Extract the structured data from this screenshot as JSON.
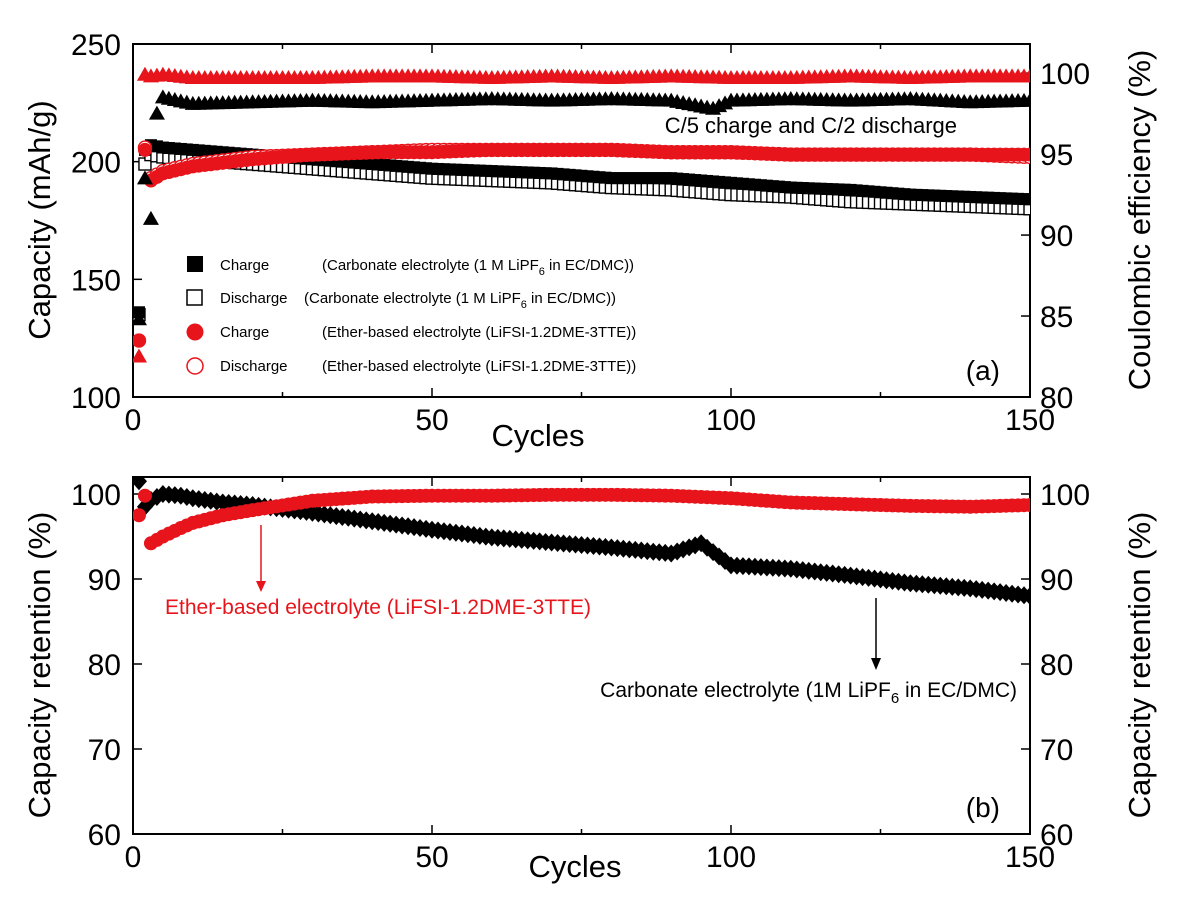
{
  "chart_data": [
    {
      "panel": "a",
      "type": "scatter",
      "panel_label": "(a)",
      "annotation": "C/5 charge and C/2 discharge",
      "xlabel": "Cycles",
      "ylabel_left": "Capacity  (mAh/g)",
      "ylabel_right": "Coulombic efficiency (%)",
      "xlim": [
        0,
        150
      ],
      "ylim_left": [
        100,
        250
      ],
      "ylim_right": [
        80,
        101.8
      ],
      "x_ticks": [
        0,
        50,
        100,
        150
      ],
      "y_ticks_left": [
        100,
        150,
        200,
        250
      ],
      "y_ticks_right": [
        80,
        85,
        90,
        95,
        100
      ],
      "grid": false,
      "legend_position": "lower-left",
      "legend": [
        {
          "label": "Charge",
          "desc_pre": "(Carbonate electrolyte (1 M LiPF",
          "sub": "6",
          "desc_post": " in EC/DMC))"
        },
        {
          "label": "Discharge",
          "desc_pre": "(Carbonate electrolyte (1 M LiPF",
          "sub": "6",
          "desc_post": " in EC/DMC))"
        },
        {
          "label": "Charge",
          "desc_pre": "(Ether-based electrolyte (LiFSI-1.2DME-3TTE))",
          "sub": "",
          "desc_post": ""
        },
        {
          "label": "Discharge",
          "desc_pre": "(Ether-based electrolyte (LiFSI-1.2DME-3TTE))",
          "sub": "",
          "desc_post": ""
        }
      ],
      "series": [
        {
          "key": "carb_charge",
          "marker": "filled-square",
          "color": "#000000",
          "axis": "left",
          "x": [
            1,
            2,
            3,
            5,
            10,
            20,
            30,
            40,
            50,
            60,
            70,
            80,
            90,
            100,
            110,
            120,
            130,
            140,
            150
          ],
          "y": [
            136,
            205,
            207,
            206,
            205,
            203,
            201,
            199,
            197,
            196,
            195,
            193,
            193,
            191,
            189,
            188,
            186,
            185,
            184
          ]
        },
        {
          "key": "carb_discharge",
          "marker": "open-square",
          "color": "#000000",
          "axis": "left",
          "x": [
            1,
            2,
            3,
            5,
            10,
            20,
            30,
            40,
            50,
            60,
            70,
            80,
            90,
            100,
            110,
            120,
            130,
            140,
            150
          ],
          "y": [
            135,
            199,
            203,
            202,
            201,
            199,
            197,
            195,
            193,
            192,
            191,
            189,
            188,
            186,
            185,
            183,
            182,
            181,
            180
          ]
        },
        {
          "key": "ether_charge",
          "marker": "filled-circle",
          "color": "#e8141b",
          "axis": "left",
          "x": [
            1,
            2,
            3,
            5,
            10,
            20,
            30,
            40,
            50,
            60,
            70,
            80,
            90,
            100,
            110,
            120,
            130,
            140,
            150
          ],
          "y": [
            124,
            205,
            192,
            195,
            198,
            201,
            203,
            204,
            204,
            205,
            205,
            205,
            204,
            204,
            203,
            203,
            203,
            203,
            203
          ]
        },
        {
          "key": "ether_discharge",
          "marker": "open-circle",
          "color": "#e8141b",
          "axis": "left",
          "x": [
            1,
            2,
            3,
            5,
            10,
            20,
            30,
            40,
            50,
            60,
            70,
            80,
            90,
            100,
            110,
            120,
            130,
            140,
            150
          ],
          "y": [
            124,
            206,
            193,
            196,
            199,
            202,
            203,
            204,
            205,
            205,
            205,
            205,
            204,
            204,
            203,
            203,
            203,
            203,
            202
          ]
        },
        {
          "key": "carb_ce",
          "marker": "filled-triangle",
          "color": "#000000",
          "axis": "right",
          "x": [
            1,
            2,
            3,
            4,
            5,
            10,
            20,
            30,
            40,
            50,
            60,
            70,
            80,
            90,
            97,
            100,
            110,
            120,
            130,
            140,
            150
          ],
          "y": [
            84.8,
            93.5,
            91.0,
            97.5,
            98.5,
            98.1,
            98.2,
            98.3,
            98.2,
            98.3,
            98.4,
            98.3,
            98.4,
            98.3,
            97.8,
            98.3,
            98.4,
            98.3,
            98.4,
            98.2,
            98.3
          ]
        },
        {
          "key": "ether_ce",
          "marker": "filled-triangle",
          "color": "#e8141b",
          "axis": "right",
          "x": [
            1,
            2,
            3,
            5,
            10,
            20,
            30,
            40,
            50,
            60,
            70,
            80,
            90,
            100,
            110,
            120,
            130,
            140,
            150
          ],
          "y": [
            82.5,
            99.9,
            99.8,
            99.9,
            99.7,
            99.7,
            99.7,
            99.8,
            99.8,
            99.7,
            99.8,
            99.7,
            99.8,
            99.7,
            99.7,
            99.8,
            99.7,
            99.8,
            99.8
          ]
        }
      ]
    },
    {
      "panel": "b",
      "type": "scatter",
      "panel_label": "(b)",
      "xlabel": "Cycles",
      "ylabel_left": "Capacity retention (%)",
      "ylabel_right": "Capacity retention (%)",
      "xlim": [
        0,
        150
      ],
      "ylim": [
        60,
        102
      ],
      "x_ticks": [
        0,
        50,
        100,
        150
      ],
      "y_ticks": [
        60,
        70,
        80,
        90,
        100
      ],
      "grid": false,
      "annotations": [
        {
          "text": "Ether-based electrolyte (LiFSI-1.2DME-3TTE)",
          "color": "#e8141b",
          "arrow_x": 21
        },
        {
          "pre": "Carbonate electrolyte (1M LiPF",
          "sub": "6",
          "post": " in EC/DMC)",
          "color": "#000000",
          "arrow_x": 125
        }
      ],
      "series": [
        {
          "key": "carb_retention",
          "marker": "filled-diamond",
          "color": "#000000",
          "x": [
            1,
            2,
            3,
            5,
            8,
            10,
            15,
            20,
            30,
            40,
            50,
            60,
            70,
            80,
            90,
            95,
            100,
            110,
            120,
            130,
            140,
            150
          ],
          "y": [
            101.5,
            98.5,
            99.3,
            100.0,
            99.8,
            99.5,
            99.0,
            98.7,
            97.8,
            96.8,
            95.8,
            94.9,
            94.3,
            93.7,
            93.0,
            94.2,
            91.6,
            91.2,
            90.4,
            89.5,
            88.9,
            88.0
          ]
        },
        {
          "key": "ether_retention",
          "marker": "filled-circle",
          "color": "#e8141b",
          "x": [
            1,
            2,
            3,
            5,
            8,
            10,
            15,
            20,
            30,
            40,
            50,
            60,
            70,
            80,
            90,
            100,
            110,
            120,
            130,
            140,
            150
          ],
          "y": [
            97.5,
            99.8,
            94.2,
            95.0,
            96.0,
            96.6,
            97.5,
            98.1,
            99.2,
            99.7,
            99.8,
            99.8,
            99.9,
            99.9,
            99.8,
            99.5,
            99.0,
            98.8,
            98.6,
            98.5,
            98.7
          ]
        }
      ]
    }
  ]
}
